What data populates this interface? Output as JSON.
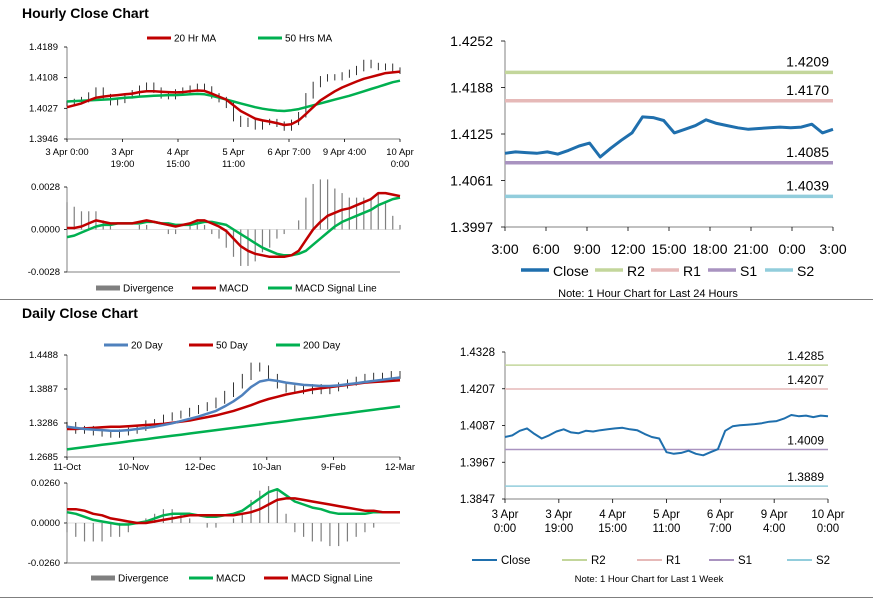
{
  "sections": {
    "hourly_title": "Hourly Close Chart",
    "daily_title": "Daily Close Chart"
  },
  "colors": {
    "ma20": "#c00000",
    "ma50h": "#00b050",
    "close": "#1f6fad",
    "r2": "#c3d69b",
    "r1": "#e6b9b8",
    "s1": "#a993c0",
    "s2": "#92cddc",
    "divergence": "#7f7f7f",
    "macd_red": "#c00000",
    "macd_green": "#00b050",
    "day20": "#4f81bd",
    "day50": "#c00000",
    "day200": "#00b050"
  },
  "chart_data": [
    {
      "id": "hourly_price",
      "type": "line",
      "legend": [
        "20 Hr MA",
        "50 Hrs MA"
      ],
      "yticks": [
        "1.4189",
        "1.4108",
        "1.4027",
        "1.3946"
      ],
      "ylim": [
        1.3946,
        1.4189
      ],
      "xticks": [
        [
          "3 Apr 0:00"
        ],
        [
          "3 Apr",
          "19:00"
        ],
        [
          "4 Apr",
          "15:00"
        ],
        [
          "5 Apr",
          "11:00"
        ],
        [
          "6 Apr 7:00"
        ],
        [
          "9 Apr 4:00"
        ],
        [
          "10 Apr",
          "0:00"
        ]
      ],
      "series": [
        {
          "name": "Close",
          "values": [
            1.404,
            1.4045,
            1.405,
            1.4062,
            1.4075,
            1.4058,
            1.4042,
            1.4048,
            1.406,
            1.4068,
            1.408,
            1.4088,
            1.4075,
            1.406,
            1.4058,
            1.407,
            1.4075,
            1.408,
            1.4085,
            1.4078,
            1.406,
            1.405,
            1.4035,
            1.4,
            1.3985,
            1.3995,
            1.3978,
            1.399,
            1.3992,
            1.3985,
            1.3975,
            1.399,
            1.401,
            1.406,
            1.409,
            1.4105,
            1.411,
            1.4108,
            1.4115,
            1.4122,
            1.4132,
            1.4148,
            1.414,
            1.4135,
            1.4138,
            1.4128,
            1.4125
          ]
        },
        {
          "name": "20 Hr MA",
          "values": [
            1.403,
            1.4035,
            1.404,
            1.4048,
            1.4055,
            1.4058,
            1.406,
            1.4062,
            1.4064,
            1.4066,
            1.407,
            1.4072,
            1.4072,
            1.4071,
            1.407,
            1.4069,
            1.407,
            1.4072,
            1.4074,
            1.4073,
            1.4066,
            1.4058,
            1.405,
            1.4035,
            1.402,
            1.401,
            1.4,
            1.3995,
            1.3992,
            1.3988,
            1.3983,
            1.3985,
            1.3995,
            1.4012,
            1.403,
            1.4048,
            1.406,
            1.4072,
            1.4082,
            1.409,
            1.4098,
            1.4105,
            1.411,
            1.4115,
            1.412,
            1.4122,
            1.4124
          ]
        },
        {
          "name": "50 Hrs MA",
          "values": [
            1.4045,
            1.4046,
            1.4047,
            1.4048,
            1.4049,
            1.405,
            1.4051,
            1.4053,
            1.4055,
            1.4056,
            1.4058,
            1.4059,
            1.406,
            1.4061,
            1.4062,
            1.4062,
            1.4063,
            1.4064,
            1.4065,
            1.4064,
            1.406,
            1.4055,
            1.405,
            1.4045,
            1.404,
            1.4035,
            1.403,
            1.4026,
            1.4023,
            1.4021,
            1.402,
            1.4022,
            1.4025,
            1.403,
            1.4035,
            1.404,
            1.4045,
            1.405,
            1.4055,
            1.406,
            1.4066,
            1.4072,
            1.4078,
            1.4084,
            1.409,
            1.4096,
            1.41
          ]
        }
      ]
    },
    {
      "id": "hourly_macd",
      "type": "line",
      "legend": [
        "Divergence",
        "MACD",
        "MACD Signal Line"
      ],
      "yticks": [
        "0.0028",
        "0.0000",
        "-0.0028"
      ],
      "ylim": [
        -0.0028,
        0.0028
      ],
      "series": [
        {
          "name": "MACD",
          "values": [
            0.0001,
            0.0001,
            0.0002,
            0.0004,
            0.0006,
            0.0005,
            0.0004,
            0.0004,
            0.0004,
            0.0004,
            0.0005,
            0.0006,
            0.0005,
            0.0004,
            0.0003,
            0.0002,
            0.0003,
            0.0004,
            0.0006,
            0.0006,
            0.0004,
            0.0002,
            -0.0001,
            -0.0006,
            -0.0011,
            -0.0014,
            -0.0016,
            -0.0017,
            -0.0018,
            -0.0018,
            -0.0018,
            -0.0017,
            -0.0014,
            -0.0007,
            0.0,
            0.0005,
            0.0009,
            0.0011,
            0.0013,
            0.0014,
            0.0016,
            0.0018,
            0.002,
            0.0024,
            0.0024,
            0.0023,
            0.0022
          ]
        },
        {
          "name": "MACD Signal Line",
          "values": [
            -0.0005,
            -0.0004,
            -0.0002,
            0.0,
            0.0002,
            0.0003,
            0.0003,
            0.0004,
            0.0004,
            0.0004,
            0.0004,
            0.0005,
            0.0005,
            0.0004,
            0.0004,
            0.0003,
            0.0003,
            0.0003,
            0.0004,
            0.0005,
            0.0005,
            0.0004,
            0.0003,
            0.0,
            -0.0003,
            -0.0006,
            -0.0009,
            -0.0012,
            -0.0014,
            -0.0016,
            -0.0017,
            -0.0017,
            -0.0016,
            -0.0014,
            -0.001,
            -0.0006,
            -0.0002,
            0.0002,
            0.0005,
            0.0007,
            0.0009,
            0.0011,
            0.0013,
            0.0016,
            0.0018,
            0.002,
            0.0021
          ]
        }
      ]
    },
    {
      "id": "hourly_pivot",
      "type": "line",
      "yticks": [
        "1.4252",
        "1.4188",
        "1.4125",
        "1.4061",
        "1.3997"
      ],
      "ylim": [
        1.3997,
        1.4252
      ],
      "xticks": [
        "3:00",
        "6:00",
        "9:00",
        "12:00",
        "15:00",
        "18:00",
        "21:00",
        "0:00",
        "3:00"
      ],
      "levels": [
        {
          "name": "R2",
          "value": 1.4209,
          "label": "1.4209"
        },
        {
          "name": "R1",
          "value": 1.417,
          "label": "1.4170"
        },
        {
          "name": "S1",
          "value": 1.4085,
          "label": "1.4085"
        },
        {
          "name": "S2",
          "value": 1.4039,
          "label": "1.4039"
        }
      ],
      "close": [
        1.4098,
        1.41,
        1.4099,
        1.4098,
        1.41,
        1.4097,
        1.4102,
        1.4108,
        1.4112,
        1.4093,
        1.4105,
        1.4116,
        1.4126,
        1.4148,
        1.4147,
        1.4143,
        1.4126,
        1.4131,
        1.4136,
        1.4144,
        1.4139,
        1.4136,
        1.4133,
        1.4131,
        1.4132,
        1.4133,
        1.4134,
        1.4133,
        1.4134,
        1.4138,
        1.4126,
        1.4131
      ],
      "legend": [
        "Close",
        "R2",
        "R1",
        "S1",
        "S2"
      ],
      "note": "Note: 1 Hour Chart for Last 24 Hours"
    },
    {
      "id": "daily_price",
      "type": "line",
      "legend": [
        "20 Day",
        "50 Day",
        "200 Day"
      ],
      "yticks": [
        "1.4488",
        "1.3887",
        "1.3286",
        "1.2685"
      ],
      "ylim": [
        1.2685,
        1.4488
      ],
      "xticks": [
        "11-Oct",
        "10-Nov",
        "12-Dec",
        "10-Jan",
        "9-Feb",
        "12-Mar"
      ],
      "series": [
        {
          "name": "Close",
          "values": [
            1.325,
            1.315,
            1.318,
            1.312,
            1.31,
            1.308,
            1.312,
            1.315,
            1.32,
            1.328,
            1.33,
            1.338,
            1.342,
            1.345,
            1.35,
            1.355,
            1.36,
            1.368,
            1.38,
            1.395,
            1.41,
            1.43,
            1.425,
            1.41,
            1.395,
            1.388,
            1.39,
            1.385,
            1.392,
            1.385,
            1.39,
            1.395,
            1.4,
            1.405,
            1.41,
            1.412,
            1.408,
            1.415,
            1.412
          ]
        },
        {
          "name": "20 Day",
          "values": [
            1.322,
            1.32,
            1.318,
            1.317,
            1.316,
            1.315,
            1.315,
            1.316,
            1.318,
            1.32,
            1.322,
            1.325,
            1.328,
            1.332,
            1.336,
            1.34,
            1.345,
            1.35,
            1.358,
            1.367,
            1.378,
            1.392,
            1.402,
            1.405,
            1.403,
            1.4,
            1.398,
            1.396,
            1.395,
            1.394,
            1.394,
            1.395,
            1.397,
            1.399,
            1.401,
            1.403,
            1.405,
            1.407,
            1.409
          ]
        },
        {
          "name": "50 Day",
          "values": [
            1.318,
            1.318,
            1.319,
            1.32,
            1.321,
            1.322,
            1.322,
            1.323,
            1.324,
            1.325,
            1.326,
            1.327,
            1.329,
            1.331,
            1.333,
            1.336,
            1.339,
            1.342,
            1.346,
            1.35,
            1.355,
            1.36,
            1.366,
            1.371,
            1.375,
            1.379,
            1.382,
            1.385,
            1.388,
            1.39,
            1.392,
            1.394,
            1.396,
            1.398,
            1.4,
            1.401,
            1.402,
            1.403,
            1.404
          ]
        },
        {
          "name": "200 Day",
          "values": [
            1.282,
            1.284,
            1.286,
            1.288,
            1.29,
            1.292,
            1.294,
            1.296,
            1.298,
            1.3,
            1.302,
            1.304,
            1.306,
            1.308,
            1.31,
            1.312,
            1.314,
            1.316,
            1.318,
            1.32,
            1.322,
            1.324,
            1.326,
            1.328,
            1.33,
            1.332,
            1.334,
            1.336,
            1.338,
            1.34,
            1.342,
            1.344,
            1.346,
            1.348,
            1.35,
            1.352,
            1.354,
            1.356,
            1.358
          ]
        }
      ]
    },
    {
      "id": "daily_macd",
      "type": "line",
      "legend": [
        "Divergence",
        "MACD",
        "MACD Signal Line"
      ],
      "yticks": [
        "0.0260",
        "0.0000",
        "-0.0260"
      ],
      "ylim": [
        -0.026,
        0.026
      ],
      "series": [
        {
          "name": "MACD",
          "values": [
            0.007,
            0.006,
            0.004,
            0.002,
            0.001,
            0.0,
            -0.001,
            -0.001,
            0.0,
            0.001,
            0.003,
            0.005,
            0.006,
            0.006,
            0.006,
            0.005,
            0.004,
            0.004,
            0.005,
            0.006,
            0.008,
            0.012,
            0.016,
            0.02,
            0.022,
            0.018,
            0.014,
            0.012,
            0.01,
            0.009,
            0.007,
            0.006,
            0.006,
            0.006,
            0.006,
            0.007,
            0.007,
            0.007,
            0.007
          ]
        },
        {
          "name": "MACD Signal Line",
          "values": [
            0.009,
            0.009,
            0.008,
            0.006,
            0.005,
            0.003,
            0.002,
            0.001,
            0.0,
            0.0,
            0.001,
            0.002,
            0.003,
            0.004,
            0.005,
            0.005,
            0.005,
            0.005,
            0.005,
            0.005,
            0.006,
            0.007,
            0.009,
            0.012,
            0.015,
            0.016,
            0.016,
            0.015,
            0.014,
            0.013,
            0.012,
            0.011,
            0.01,
            0.009,
            0.008,
            0.008,
            0.007,
            0.007,
            0.007
          ]
        }
      ]
    },
    {
      "id": "daily_pivot",
      "type": "line",
      "yticks": [
        "1.4328",
        "1.4207",
        "1.4087",
        "1.3967",
        "1.3847"
      ],
      "ylim": [
        1.3847,
        1.4328
      ],
      "xticks": [
        [
          "3 Apr",
          "0:00"
        ],
        [
          "3 Apr",
          "19:00"
        ],
        [
          "4 Apr",
          "15:00"
        ],
        [
          "5 Apr",
          "11:00"
        ],
        [
          "6 Apr",
          "7:00"
        ],
        [
          "9 Apr",
          "4:00"
        ],
        [
          "10 Apr",
          "0:00"
        ]
      ],
      "levels": [
        {
          "name": "R2",
          "value": 1.4285,
          "label": "1.4285"
        },
        {
          "name": "R1",
          "value": 1.4207,
          "label": "1.4207"
        },
        {
          "name": "S1",
          "value": 1.4009,
          "label": "1.4009"
        },
        {
          "name": "S2",
          "value": 1.3889,
          "label": "1.3889"
        }
      ],
      "close": [
        1.405,
        1.4055,
        1.407,
        1.4078,
        1.406,
        1.4045,
        1.4055,
        1.4068,
        1.4075,
        1.4065,
        1.4062,
        1.407,
        1.4068,
        1.4072,
        1.4075,
        1.4078,
        1.408,
        1.4075,
        1.4072,
        1.406,
        1.405,
        1.4045,
        1.4,
        1.3995,
        1.3998,
        1.4005,
        1.3995,
        1.399,
        1.4,
        1.401,
        1.407,
        1.4085,
        1.4088,
        1.409,
        1.4092,
        1.4095,
        1.41,
        1.4102,
        1.411,
        1.4122,
        1.4118,
        1.412,
        1.4115,
        1.412,
        1.4118
      ],
      "legend": [
        "Close",
        "R2",
        "R1",
        "S1",
        "S2"
      ],
      "note": "Note: 1 Hour Chart for Last 1 Week"
    }
  ]
}
